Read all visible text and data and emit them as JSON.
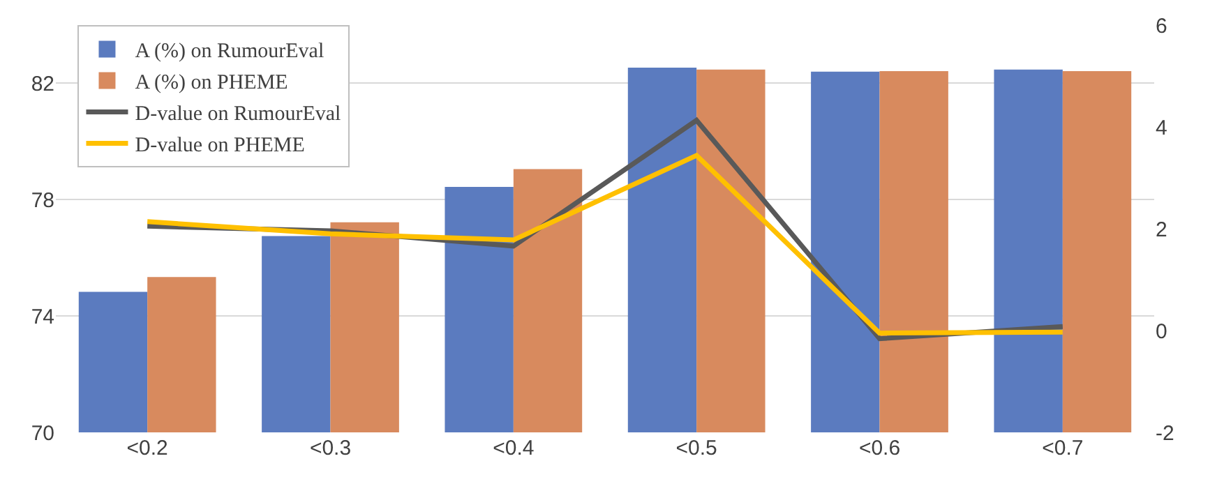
{
  "chart_data": {
    "type": "bar",
    "categories": [
      "<0.2",
      "<0.3",
      "<0.4",
      "<0.5",
      "<0.6",
      "<0.7"
    ],
    "series": [
      {
        "name": "A (%) on RumourEval",
        "color": "#5b7bbf",
        "values": [
          74.83,
          76.75,
          78.44,
          82.54,
          82.4,
          82.47
        ]
      },
      {
        "name": "A (%) on PHEME",
        "color": "#d88a5e",
        "values": [
          75.34,
          77.22,
          79.05,
          82.47,
          82.42,
          82.42
        ]
      },
      {
        "name": "D-value on RumourEval",
        "type": "line",
        "axis": "y2",
        "color": "#595959",
        "values": [
          2.05,
          1.96,
          1.66,
          4.13,
          -0.16,
          0.08
        ]
      },
      {
        "name": "D-value on PHEME",
        "type": "line",
        "axis": "y2",
        "color": "#ffc000",
        "values": [
          2.14,
          1.9,
          1.78,
          3.44,
          -0.05,
          -0.03
        ]
      }
    ],
    "ylim": [
      70,
      84
    ],
    "yticks": [
      70,
      74,
      78,
      82
    ],
    "y2lim": [
      -2,
      6
    ],
    "y2ticks": [
      -2,
      0,
      2,
      4,
      6
    ],
    "grid": "y",
    "legend": "top left",
    "line_style": "solid",
    "marker": "none"
  }
}
